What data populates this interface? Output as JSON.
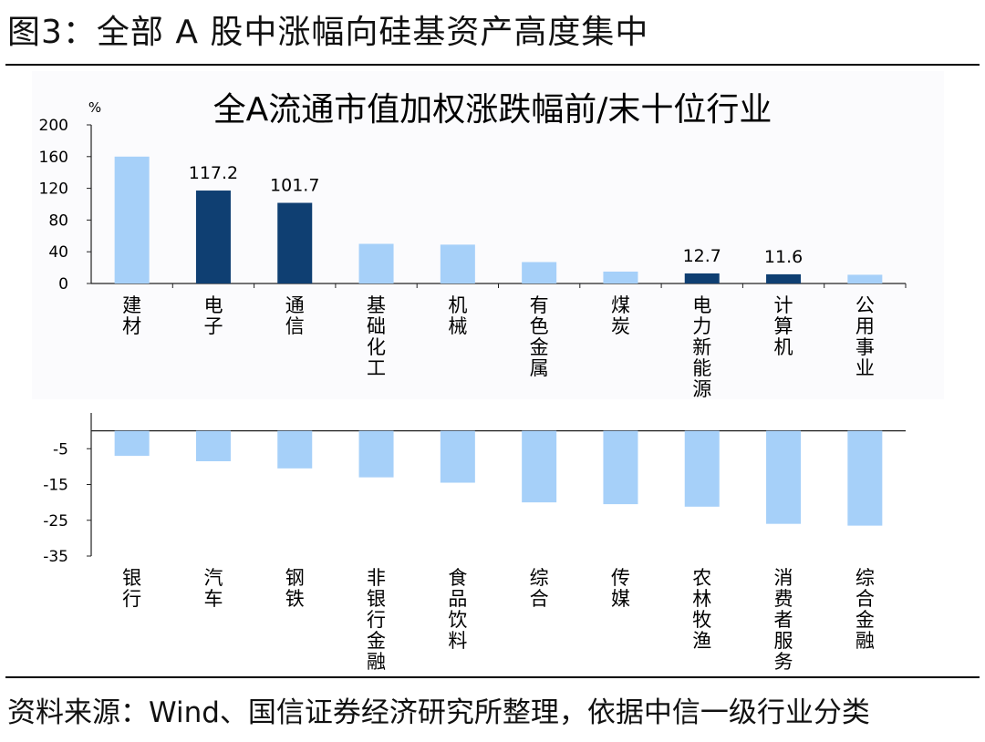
{
  "figure_title": "图3：全部 A 股中涨幅向硅基资产高度集中",
  "source_note": "资料来源：Wind、国信证券经济研究所整理，依据中信一级行业分类",
  "colors": {
    "highlight": "#0f3f72",
    "normal": "#a6d0f9",
    "axis": "#222222"
  },
  "chart_data": [
    {
      "type": "bar",
      "title": "全A流通市值加权涨跌幅前/末十位行业",
      "unit_label": "%",
      "ylim": [
        0,
        200
      ],
      "yticks": [
        0,
        40,
        80,
        120,
        160,
        200
      ],
      "categories": [
        "建材",
        "电子",
        "通信",
        "基础化工",
        "机械",
        "有色金属",
        "煤炭",
        "电力新能源",
        "计算机",
        "公用事业"
      ],
      "values": [
        160,
        117.2,
        101.7,
        50,
        49,
        27,
        15,
        12.7,
        11.6,
        11
      ],
      "highlighted": [
        false,
        true,
        true,
        false,
        false,
        false,
        false,
        true,
        true,
        false
      ],
      "data_labels": [
        "",
        "117.2",
        "101.7",
        "",
        "",
        "",
        "",
        "12.7",
        "11.6",
        ""
      ]
    },
    {
      "type": "bar",
      "ylim": [
        -35,
        5
      ],
      "yticks": [
        -5,
        -15,
        -25,
        -35
      ],
      "categories": [
        "银行",
        "汽车",
        "钢铁",
        "非银行金融",
        "食品饮料",
        "综合",
        "传媒",
        "农林牧渔",
        "消费者服务",
        "综合金融"
      ],
      "values": [
        -7,
        -8.5,
        -10.5,
        -13,
        -14.5,
        -20,
        -20.5,
        -21.2,
        -26,
        -26.5
      ]
    }
  ]
}
